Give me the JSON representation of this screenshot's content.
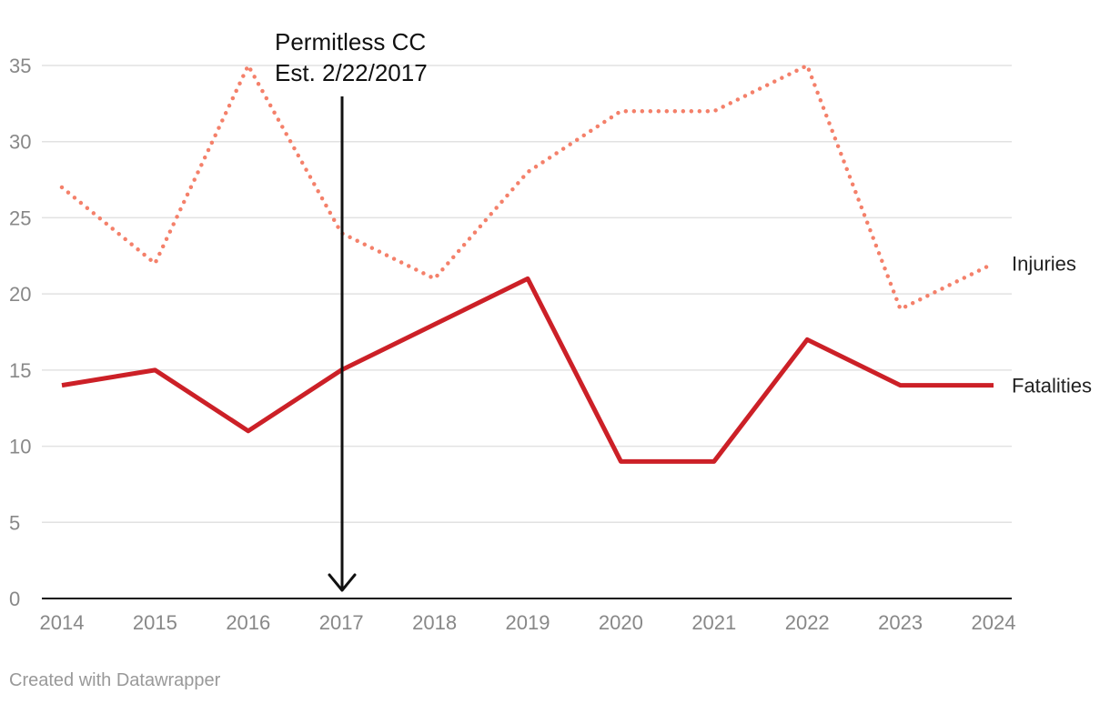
{
  "chart_data": {
    "type": "line",
    "title": "",
    "xlabel": "",
    "ylabel": "",
    "x": [
      "2014",
      "2015",
      "2016",
      "2017",
      "2018",
      "2019",
      "2020",
      "2021",
      "2022",
      "2023",
      "2024"
    ],
    "ylim": [
      0,
      35
    ],
    "yticks": [
      0,
      5,
      10,
      15,
      20,
      25,
      30,
      35
    ],
    "grid": true,
    "series": [
      {
        "name": "Injuries",
        "style": "dotted",
        "color": "#f4806a",
        "values": [
          27,
          22,
          35,
          24,
          21,
          28,
          32,
          32,
          35,
          19,
          22
        ]
      },
      {
        "name": "Fatalities",
        "style": "solid",
        "color": "#cc2027",
        "values": [
          14,
          15,
          11,
          15,
          18,
          21,
          9,
          9,
          17,
          14,
          14
        ]
      }
    ],
    "annotation": {
      "line1": "Permitless CC",
      "line2": "Est. 2/22/2017",
      "x": "2017"
    }
  },
  "credit": "Created with Datawrapper"
}
